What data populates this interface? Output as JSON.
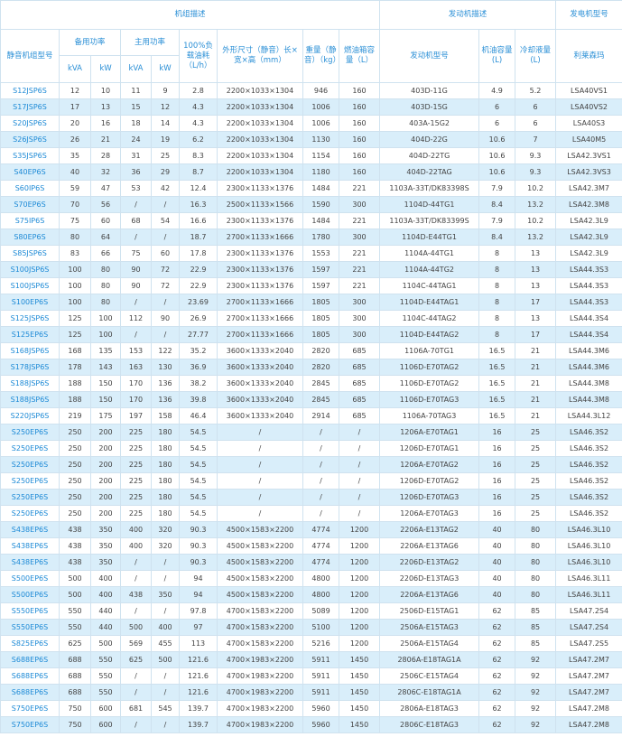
{
  "header": {
    "groups": [
      "机组描述",
      "发动机描述",
      "发电机型号"
    ],
    "columns": [
      "静音机组型号",
      "备用功率",
      "主用功率",
      "100%负载油耗（L/h）",
      "外形尺寸（静音）长×宽×高（mm）",
      "重量（静音）（kg）",
      "燃油箱容量（L）",
      "发动机型号",
      "机油容量(L)",
      "冷却液量(L)",
      "利莱森玛"
    ],
    "units": [
      "kVA",
      "kW",
      "kVA",
      "kW"
    ]
  },
  "table": {
    "rows": [
      [
        "S12JSP6S",
        "12",
        "10",
        "11",
        "9",
        "2.8",
        "2200×1033×1304",
        "946",
        "160",
        "403D-11G",
        "4.9",
        "5.2",
        "LSA40VS1"
      ],
      [
        "S17JSP6S",
        "17",
        "13",
        "15",
        "12",
        "4.3",
        "2200×1033×1304",
        "1006",
        "160",
        "403D-15G",
        "6",
        "6",
        "LSA40VS2"
      ],
      [
        "S20JSP6S",
        "20",
        "16",
        "18",
        "14",
        "4.3",
        "2200×1033×1304",
        "1006",
        "160",
        "403A-15G2",
        "6",
        "6",
        "LSA40S3"
      ],
      [
        "S26JSP6S",
        "26",
        "21",
        "24",
        "19",
        "6.2",
        "2200×1033×1304",
        "1130",
        "160",
        "404D-22G",
        "10.6",
        "7",
        "LSA40M5"
      ],
      [
        "S35JSP6S",
        "35",
        "28",
        "31",
        "25",
        "8.3",
        "2200×1033×1304",
        "1154",
        "160",
        "404D-22TG",
        "10.6",
        "9.3",
        "LSA42.3VS1"
      ],
      [
        "S40EP6S",
        "40",
        "32",
        "36",
        "29",
        "8.7",
        "2200×1033×1304",
        "1180",
        "160",
        "404D-22TAG",
        "10.6",
        "9.3",
        "LSA42.3VS3"
      ],
      [
        "S60IP6S",
        "59",
        "47",
        "53",
        "42",
        "12.4",
        "2300×1133×1376",
        "1484",
        "221",
        "1103A-33T/DK83398S",
        "7.9",
        "10.2",
        "LSA42.3M7"
      ],
      [
        "S70EP6S",
        "70",
        "56",
        "/",
        "/",
        "16.3",
        "2500×1133×1566",
        "1590",
        "300",
        "1104D-44TG1",
        "8.4",
        "13.2",
        "LSA42.3M8"
      ],
      [
        "S75IP6S",
        "75",
        "60",
        "68",
        "54",
        "16.6",
        "2300×1133×1376",
        "1484",
        "221",
        "1103A-33T/DK83399S",
        "7.9",
        "10.2",
        "LSA42.3L9"
      ],
      [
        "S80EP6S",
        "80",
        "64",
        "/",
        "/",
        "18.7",
        "2700×1133×1666",
        "1780",
        "300",
        "1104D-E44TG1",
        "8.4",
        "13.2",
        "LSA42.3L9"
      ],
      [
        "S85JSP6S",
        "83",
        "66",
        "75",
        "60",
        "17.8",
        "2300×1133×1376",
        "1553",
        "221",
        "1104A-44TG1",
        "8",
        "13",
        "LSA42.3L9"
      ],
      [
        "S100JSP6S",
        "100",
        "80",
        "90",
        "72",
        "22.9",
        "2300×1133×1376",
        "1597",
        "221",
        "1104A-44TG2",
        "8",
        "13",
        "LSA44.3S3"
      ],
      [
        "S100JSP6S",
        "100",
        "80",
        "90",
        "72",
        "22.9",
        "2300×1133×1376",
        "1597",
        "221",
        "1104C-44TAG1",
        "8",
        "13",
        "LSA44.3S3"
      ],
      [
        "S100EP6S",
        "100",
        "80",
        "/",
        "/",
        "23.69",
        "2700×1133×1666",
        "1805",
        "300",
        "1104D-E44TAG1",
        "8",
        "17",
        "LSA44.3S3"
      ],
      [
        "S125JSP6S",
        "125",
        "100",
        "112",
        "90",
        "26.9",
        "2700×1133×1666",
        "1805",
        "300",
        "1104C-44TAG2",
        "8",
        "13",
        "LSA44.3S4"
      ],
      [
        "S125EP6S",
        "125",
        "100",
        "/",
        "/",
        "27.77",
        "2700×1133×1666",
        "1805",
        "300",
        "1104D-E44TAG2",
        "8",
        "17",
        "LSA44.3S4"
      ],
      [
        "S168JSP6S",
        "168",
        "135",
        "153",
        "122",
        "35.2",
        "3600×1333×2040",
        "2820",
        "685",
        "1106A-70TG1",
        "16.5",
        "21",
        "LSA44.3M6"
      ],
      [
        "S178JSP6S",
        "178",
        "143",
        "163",
        "130",
        "36.9",
        "3600×1333×2040",
        "2820",
        "685",
        "1106D-E70TAG2",
        "16.5",
        "21",
        "LSA44.3M6"
      ],
      [
        "S188JSP6S",
        "188",
        "150",
        "170",
        "136",
        "38.2",
        "3600×1333×2040",
        "2845",
        "685",
        "1106D-E70TAG2",
        "16.5",
        "21",
        "LSA44.3M8"
      ],
      [
        "S188JSP6S",
        "188",
        "150",
        "170",
        "136",
        "39.8",
        "3600×1333×2040",
        "2845",
        "685",
        "1106D-E70TAG3",
        "16.5",
        "21",
        "LSA44.3M8"
      ],
      [
        "S220JSP6S",
        "219",
        "175",
        "197",
        "158",
        "46.4",
        "3600×1333×2040",
        "2914",
        "685",
        "1106A-70TAG3",
        "16.5",
        "21",
        "LSA44.3L12"
      ],
      [
        "S250EP6S",
        "250",
        "200",
        "225",
        "180",
        "54.5",
        "/",
        "/",
        "/",
        "1206A-E70TAG1",
        "16",
        "25",
        "LSA46.3S2"
      ],
      [
        "S250EP6S",
        "250",
        "200",
        "225",
        "180",
        "54.5",
        "/",
        "/",
        "/",
        "1206D-E70TAG1",
        "16",
        "25",
        "LSA46.3S2"
      ],
      [
        "S250EP6S",
        "250",
        "200",
        "225",
        "180",
        "54.5",
        "/",
        "/",
        "/",
        "1206A-E70TAG2",
        "16",
        "25",
        "LSA46.3S2"
      ],
      [
        "S250EP6S",
        "250",
        "200",
        "225",
        "180",
        "54.5",
        "/",
        "/",
        "/",
        "1206D-E70TAG2",
        "16",
        "25",
        "LSA46.3S2"
      ],
      [
        "S250EP6S",
        "250",
        "200",
        "225",
        "180",
        "54.5",
        "/",
        "/",
        "/",
        "1206D-E70TAG3",
        "16",
        "25",
        "LSA46.3S2"
      ],
      [
        "S250EP6S",
        "250",
        "200",
        "225",
        "180",
        "54.5",
        "/",
        "/",
        "/",
        "1206A-E70TAG3",
        "16",
        "25",
        "LSA46.3S2"
      ],
      [
        "S438EP6S",
        "438",
        "350",
        "400",
        "320",
        "90.3",
        "4500×1583×2200",
        "4774",
        "1200",
        "2206A-E13TAG2",
        "40",
        "80",
        "LSA46.3L10"
      ],
      [
        "S438EP6S",
        "438",
        "350",
        "400",
        "320",
        "90.3",
        "4500×1583×2200",
        "4774",
        "1200",
        "2206A-E13TAG6",
        "40",
        "80",
        "LSA46.3L10"
      ],
      [
        "S438EP6S",
        "438",
        "350",
        "/",
        "/",
        "90.3",
        "4500×1583×2200",
        "4774",
        "1200",
        "2206D-E13TAG2",
        "40",
        "80",
        "LSA46.3L10"
      ],
      [
        "S500EP6S",
        "500",
        "400",
        "/",
        "/",
        "94",
        "4500×1583×2200",
        "4800",
        "1200",
        "2206D-E13TAG3",
        "40",
        "80",
        "LSA46.3L11"
      ],
      [
        "S500EP6S",
        "500",
        "400",
        "438",
        "350",
        "94",
        "4500×1583×2200",
        "4800",
        "1200",
        "2206A-E13TAG6",
        "40",
        "80",
        "LSA46.3L11"
      ],
      [
        "S550EP6S",
        "550",
        "440",
        "/",
        "/",
        "97.8",
        "4700×1583×2200",
        "5089",
        "1200",
        "2506D-E15TAG1",
        "62",
        "85",
        "LSA47.2S4"
      ],
      [
        "S550EP6S",
        "550",
        "440",
        "500",
        "400",
        "97",
        "4700×1583×2200",
        "5100",
        "1200",
        "2506A-E15TAG3",
        "62",
        "85",
        "LSA47.2S4"
      ],
      [
        "S825EP6S",
        "625",
        "500",
        "569",
        "455",
        "113",
        "4700×1583×2200",
        "5216",
        "1200",
        "2506A-E15TAG4",
        "62",
        "85",
        "LSA47.2S5"
      ],
      [
        "S688EP6S",
        "688",
        "550",
        "625",
        "500",
        "121.6",
        "4700×1983×2200",
        "5911",
        "1450",
        "2806A-E18TAG1A",
        "62",
        "92",
        "LSA47.2M7"
      ],
      [
        "S688EP6S",
        "688",
        "550",
        "/",
        "/",
        "121.6",
        "4700×1983×2200",
        "5911",
        "1450",
        "2506C-E15TAG4",
        "62",
        "92",
        "LSA47.2M7"
      ],
      [
        "S688EP6S",
        "688",
        "550",
        "/",
        "/",
        "121.6",
        "4700×1983×2200",
        "5911",
        "1450",
        "2806C-E18TAG1A",
        "62",
        "92",
        "LSA47.2M7"
      ],
      [
        "S750EP6S",
        "750",
        "600",
        "681",
        "545",
        "139.7",
        "4700×1983×2200",
        "5960",
        "1450",
        "2806A-E18TAG3",
        "62",
        "92",
        "LSA47.2M8"
      ],
      [
        "S750EP6S",
        "750",
        "600",
        "/",
        "/",
        "139.7",
        "4700×1983×2200",
        "5960",
        "1450",
        "2806C-E18TAG3",
        "62",
        "92",
        "LSA47.2M8"
      ]
    ]
  }
}
